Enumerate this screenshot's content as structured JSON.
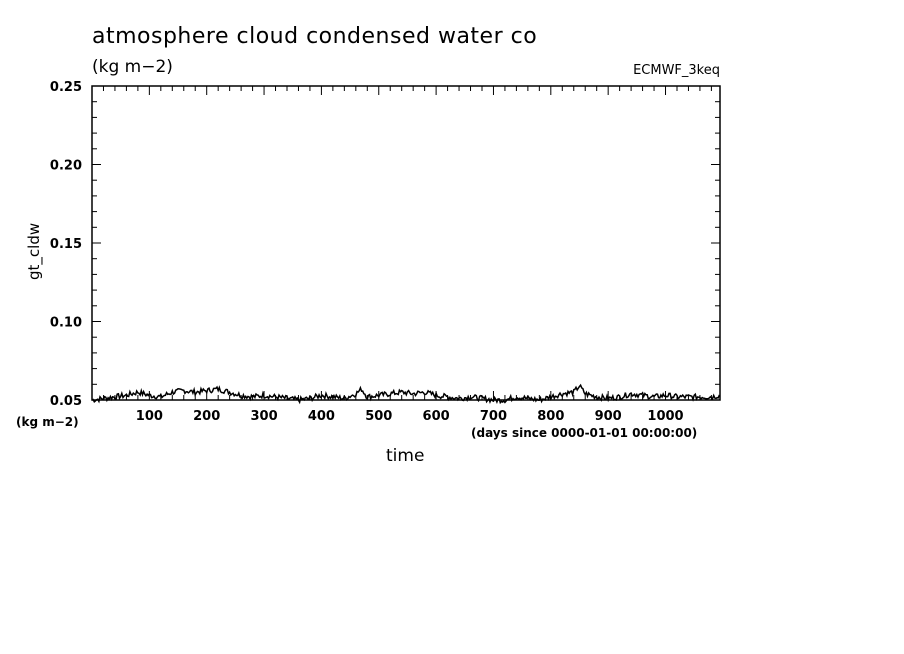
{
  "chart_data": {
    "type": "line",
    "title": "atmosphere cloud condensed water co",
    "subtitle": "(kg m−2)",
    "source_label": "ECMWF_3keq",
    "ylabel": "gt_cldw",
    "yunit": "(kg m−2)",
    "xlabel": "time",
    "xunit": "(days since 0000-01-01 00:00:00)",
    "xlim": [
      0,
      1095
    ],
    "ylim": [
      0.05,
      0.25
    ],
    "x_ticks": [
      100,
      200,
      300,
      400,
      500,
      600,
      700,
      800,
      900,
      1000
    ],
    "y_ticks": [
      "0.05",
      "0.10",
      "0.15",
      "0.20",
      "0.25"
    ],
    "line_color": "#000000",
    "series": [
      {
        "x": [
          0,
          20,
          40,
          60,
          80,
          100,
          120,
          140,
          160,
          180,
          200,
          220,
          240,
          260,
          280,
          300,
          320,
          340,
          360,
          380,
          400,
          420,
          440,
          460,
          470,
          480,
          500,
          520,
          540,
          560,
          580,
          600,
          620,
          640,
          660,
          680,
          700,
          720,
          740,
          760,
          780,
          800,
          820,
          840,
          850,
          860,
          880,
          900,
          920,
          940,
          960,
          980,
          1000,
          1020,
          1040,
          1060,
          1080,
          1095
        ],
        "y": [
          0.05,
          0.051,
          0.052,
          0.053,
          0.055,
          0.053,
          0.052,
          0.055,
          0.056,
          0.055,
          0.056,
          0.057,
          0.055,
          0.053,
          0.052,
          0.053,
          0.052,
          0.051,
          0.05,
          0.051,
          0.053,
          0.052,
          0.051,
          0.054,
          0.057,
          0.052,
          0.053,
          0.054,
          0.055,
          0.054,
          0.055,
          0.053,
          0.052,
          0.051,
          0.052,
          0.051,
          0.05,
          0.05,
          0.052,
          0.051,
          0.05,
          0.052,
          0.054,
          0.055,
          0.059,
          0.054,
          0.052,
          0.051,
          0.052,
          0.054,
          0.053,
          0.052,
          0.053,
          0.052,
          0.052,
          0.052,
          0.052,
          0.053
        ]
      }
    ]
  }
}
